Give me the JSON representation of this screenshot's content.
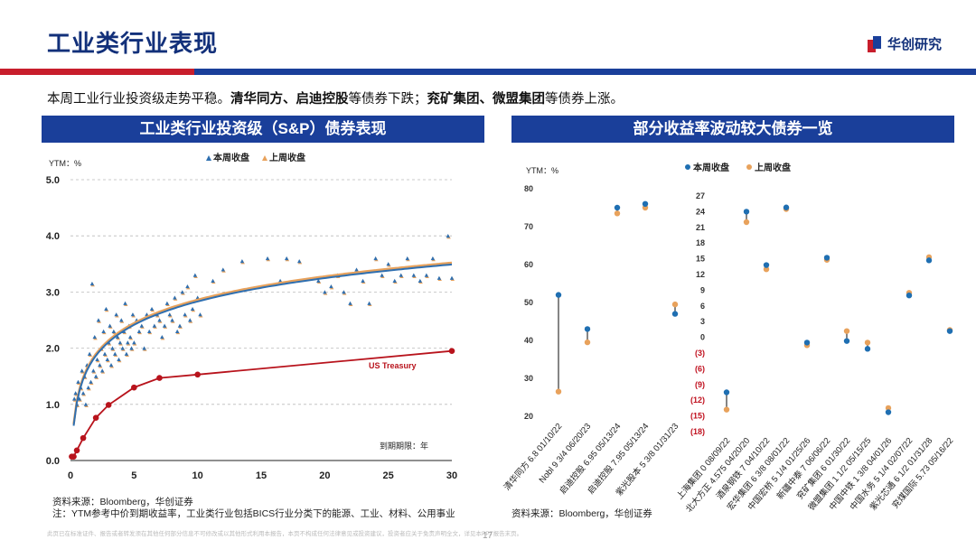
{
  "header": {
    "title": "工业类行业表现",
    "logo_text": "华创研究",
    "summary_lead": "本周工业行业投资级走势平稳。",
    "summary_down_names": "清华同方、启迪控股",
    "summary_down_text": "等债券下跌；",
    "summary_up_names": "兖矿集团、微盟集团",
    "summary_up_text": "等债券上涨。"
  },
  "left_panel": {
    "title": "工业类行业投资级（S&P）债券表现",
    "source": "资料来源：Bloomberg，华创证券",
    "note": "注：YTM参考中价到期收益率，工业类行业包括BICS行业分类下的能源、工业、材料、公用事业"
  },
  "right_panel": {
    "title": "部分收益率波动较大债券一览",
    "source": "资料来源：Bloomberg，华创证券"
  },
  "footer": {
    "disclaimer": "此页已在标准证件、报告或者转发须在其他任何部分信息不可修改或以其他形式利用本报告，本页不构成任何法律意见或投资建议，投资者应关于免责声明全文，详见本PPT报告末页。",
    "page": "17"
  },
  "chart_data": [
    {
      "type": "scatter",
      "title": "工业类行业投资级（S&P）债券表现",
      "ylabel": "YTM：%",
      "xlabel": "到期期限：年",
      "xlim": [
        0,
        30
      ],
      "ylim": [
        0,
        5
      ],
      "xticks": [
        0,
        5,
        10,
        15,
        20,
        25,
        30
      ],
      "yticks": [
        "0.0",
        "1.0",
        "2.0",
        "3.0",
        "4.0",
        "5.0"
      ],
      "legend": [
        "本周收盘",
        "上周收盘"
      ],
      "annotation": "US Treasury",
      "colors": {
        "this_week": "#2f6fb0",
        "last_week": "#e8a25c",
        "treasury": "#b8131c",
        "grid": "#bbbbbb"
      },
      "scatter_points": [
        [
          0.3,
          1.1
        ],
        [
          0.4,
          1.2
        ],
        [
          0.5,
          1.0
        ],
        [
          0.6,
          1.4
        ],
        [
          0.7,
          1.1
        ],
        [
          0.8,
          1.3
        ],
        [
          0.9,
          1.6
        ],
        [
          1.0,
          1.2
        ],
        [
          1.1,
          1.5
        ],
        [
          1.2,
          1.0
        ],
        [
          1.3,
          1.7
        ],
        [
          1.4,
          1.3
        ],
        [
          1.5,
          1.9
        ],
        [
          1.6,
          1.4
        ],
        [
          1.7,
          3.15
        ],
        [
          1.8,
          1.6
        ],
        [
          1.9,
          2.2
        ],
        [
          2.0,
          1.5
        ],
        [
          2.1,
          1.8
        ],
        [
          2.2,
          2.5
        ],
        [
          2.3,
          1.7
        ],
        [
          2.4,
          2.0
        ],
        [
          2.5,
          1.6
        ],
        [
          2.6,
          2.3
        ],
        [
          2.7,
          1.9
        ],
        [
          2.8,
          2.7
        ],
        [
          2.9,
          1.8
        ],
        [
          3.0,
          2.1
        ],
        [
          3.1,
          2.4
        ],
        [
          3.2,
          1.7
        ],
        [
          3.3,
          2.0
        ],
        [
          3.4,
          2.3
        ],
        [
          3.5,
          1.9
        ],
        [
          3.6,
          2.6
        ],
        [
          3.7,
          2.2
        ],
        [
          3.8,
          1.8
        ],
        [
          3.9,
          2.1
        ],
        [
          4.0,
          2.5
        ],
        [
          4.1,
          2.0
        ],
        [
          4.2,
          2.3
        ],
        [
          4.3,
          2.8
        ],
        [
          4.4,
          1.9
        ],
        [
          4.5,
          2.1
        ],
        [
          4.6,
          2.4
        ],
        [
          4.7,
          2.2
        ],
        [
          4.8,
          2.0
        ],
        [
          4.9,
          2.6
        ],
        [
          5.0,
          2.1
        ],
        [
          5.2,
          2.5
        ],
        [
          5.4,
          2.3
        ],
        [
          5.6,
          2.4
        ],
        [
          5.8,
          2.0
        ],
        [
          6.0,
          2.6
        ],
        [
          6.2,
          2.3
        ],
        [
          6.4,
          2.7
        ],
        [
          6.6,
          2.4
        ],
        [
          6.8,
          2.6
        ],
        [
          7.0,
          2.5
        ],
        [
          7.2,
          2.2
        ],
        [
          7.4,
          2.4
        ],
        [
          7.6,
          2.8
        ],
        [
          7.8,
          2.6
        ],
        [
          8.0,
          2.5
        ],
        [
          8.2,
          2.9
        ],
        [
          8.4,
          2.3
        ],
        [
          8.6,
          2.4
        ],
        [
          8.8,
          3.0
        ],
        [
          9.0,
          2.6
        ],
        [
          9.2,
          3.1
        ],
        [
          9.4,
          2.5
        ],
        [
          9.6,
          2.7
        ],
        [
          9.8,
          3.3
        ],
        [
          10.0,
          2.9
        ],
        [
          10.2,
          2.6
        ],
        [
          11.2,
          3.2
        ],
        [
          12.0,
          3.4
        ],
        [
          13.5,
          3.55
        ],
        [
          15.5,
          3.6
        ],
        [
          16.5,
          3.2
        ],
        [
          17.0,
          3.6
        ],
        [
          18.0,
          3.55
        ],
        [
          19.5,
          3.2
        ],
        [
          20.0,
          3.0
        ],
        [
          20.5,
          3.1
        ],
        [
          21.0,
          3.3
        ],
        [
          21.5,
          3.0
        ],
        [
          22.0,
          2.8
        ],
        [
          22.5,
          3.4
        ],
        [
          23.0,
          3.2
        ],
        [
          23.5,
          2.8
        ],
        [
          24.0,
          3.6
        ],
        [
          24.5,
          3.3
        ],
        [
          25.0,
          3.5
        ],
        [
          25.5,
          3.2
        ],
        [
          26.0,
          3.3
        ],
        [
          26.5,
          3.6
        ],
        [
          27.0,
          3.3
        ],
        [
          27.5,
          3.2
        ],
        [
          28.0,
          3.3
        ],
        [
          28.5,
          3.6
        ],
        [
          29.0,
          3.25
        ],
        [
          29.7,
          4.0
        ],
        [
          30.0,
          3.25
        ]
      ],
      "treasury": [
        [
          0.1,
          0.07
        ],
        [
          0.25,
          0.07
        ],
        [
          0.5,
          0.18
        ],
        [
          1,
          0.4
        ],
        [
          2,
          0.76
        ],
        [
          3,
          0.99
        ],
        [
          5,
          1.3
        ],
        [
          7,
          1.47
        ],
        [
          10,
          1.53
        ],
        [
          30,
          1.95
        ]
      ]
    },
    {
      "type": "dumbbell",
      "ylabel": "YTM：%",
      "legend": [
        "本周收盘",
        "上周收盘"
      ],
      "ylim": [
        20,
        80
      ],
      "yticks": [
        20,
        30,
        40,
        50,
        60,
        70,
        80
      ],
      "categories": [
        "清华同方 6.8 01/10/22",
        "Nobl 9 3/4 06/20/23",
        "启迪控股 6.95 05/13/24",
        "启迪控股 7.95 05/13/24",
        "紫光股本 5 3/8 01/31/23"
      ],
      "this_week": [
        52,
        43,
        75,
        76,
        47
      ],
      "last_week": [
        26.5,
        39.5,
        73.5,
        75,
        49.5
      ]
    },
    {
      "type": "dumbbell",
      "ylim": [
        -18,
        27
      ],
      "yticks": [
        27,
        24,
        21,
        18,
        15,
        12,
        9,
        6,
        3,
        0,
        -3,
        -6,
        -9,
        -12,
        -15,
        -18
      ],
      "ytick_labels": [
        "27",
        "24",
        "21",
        "18",
        "15",
        "12",
        "9",
        "6",
        "3",
        "0",
        "(3)",
        "(6)",
        "(9)",
        "(12)",
        "(15)",
        "(18)"
      ],
      "categories": [
        "上海集团 0 08/09/22",
        "北大方正 4.575 04/20/20",
        "酒泉钢铁 7 04/10/22",
        "宏华集团 6 3/8 08/01/22",
        "中国宏桥 5 1/4 01/25/26",
        "新疆中泰 7 06/06/22",
        "兖矿集团 6 01/30/22",
        "微盟集团 1 1/2 05/15/25",
        "中国中铁 1 3/8 04/01/26",
        "中国水务 5 1/4 02/07/22",
        "紫光芯通 6 1/2 01/31/28",
        "兖煤国际 5.73 05/16/22"
      ],
      "this_week": [
        -10.5,
        24,
        13.8,
        24.8,
        -1,
        15.2,
        -0.7,
        -2.2,
        -14.3,
        8,
        14.7,
        1.2
      ],
      "last_week": [
        -13.8,
        22,
        13,
        24.5,
        -1.5,
        14.8,
        1.2,
        -1,
        -13.5,
        8.5,
        15.3,
        1.4
      ]
    }
  ]
}
